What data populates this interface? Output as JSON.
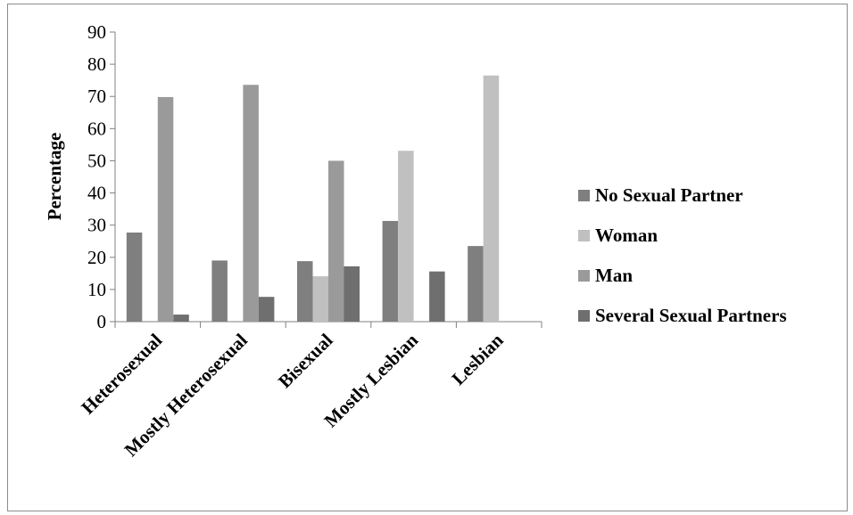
{
  "chart_data": {
    "type": "bar",
    "title": "",
    "xlabel": "",
    "ylabel": "Percentage",
    "ylim": [
      0,
      90
    ],
    "yticks": [
      0,
      10,
      20,
      30,
      40,
      50,
      60,
      70,
      80,
      90
    ],
    "grid": false,
    "legend_position": "right",
    "categories": [
      "Heterosexual",
      "Mostly Heterosexual",
      "Bisexual",
      "Mostly Lesbian",
      "Lesbian"
    ],
    "series": [
      {
        "name": "No Sexual Partner",
        "color": "#7f7f7f",
        "values": [
          27.7,
          19.0,
          18.8,
          31.3,
          23.5
        ]
      },
      {
        "name": "Woman",
        "color": "#c0c0c0",
        "values": [
          0,
          0,
          14.1,
          53.1,
          76.5
        ]
      },
      {
        "name": "Man",
        "color": "#9a9a9a",
        "values": [
          69.8,
          73.6,
          50.0,
          0,
          0
        ]
      },
      {
        "name": "Several Sexual Partners",
        "color": "#6f6f6f",
        "values": [
          2.2,
          7.7,
          17.2,
          15.6,
          0
        ]
      }
    ]
  }
}
